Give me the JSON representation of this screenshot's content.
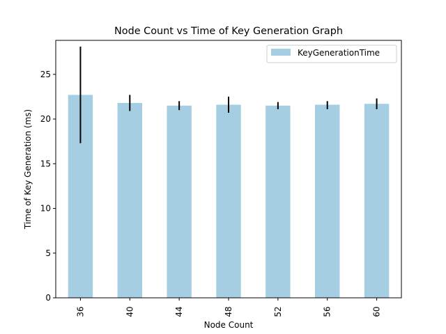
{
  "chart_data": {
    "type": "bar",
    "title": "Node Count vs Time of Key Generation Graph",
    "xlabel": "Node Count",
    "ylabel": "Time of Key Generation (ms)",
    "categories": [
      "36",
      "40",
      "44",
      "48",
      "52",
      "56",
      "60"
    ],
    "series": [
      {
        "name": "KeyGenerationTime",
        "values": [
          22.7,
          21.8,
          21.5,
          21.6,
          21.5,
          21.6,
          21.7
        ],
        "error_low": [
          17.3,
          20.9,
          21.0,
          20.7,
          21.1,
          21.1,
          21.1
        ],
        "error_high": [
          28.1,
          22.7,
          22.0,
          22.5,
          21.9,
          22.0,
          22.3
        ],
        "color": "#a6cee3"
      }
    ],
    "ylim": [
      0,
      28.8
    ],
    "yticks": [
      0,
      5,
      10,
      15,
      20,
      25
    ],
    "grid": false,
    "legend_position": "top-right",
    "error_bar_color": "#000000"
  }
}
